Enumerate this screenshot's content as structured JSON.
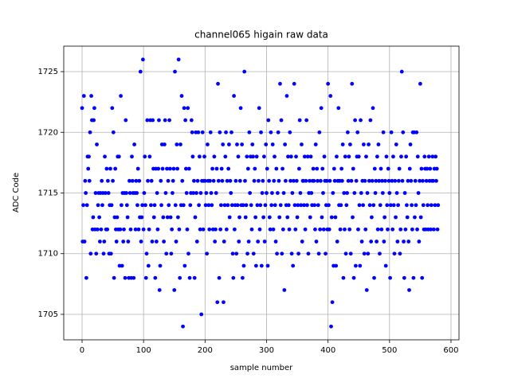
{
  "chart_data": {
    "type": "scatter",
    "title": "channel065 higain raw data",
    "x_label": "sample number",
    "y_label": "ADC Code",
    "color": "#0000ff",
    "grid": true,
    "xlim": [
      -29.8,
      613
    ],
    "ylim": [
      1702.9,
      1727.1
    ],
    "xticks": [
      0,
      100,
      200,
      300,
      400,
      500,
      600
    ],
    "yticks": [
      1705,
      1710,
      1715,
      1720,
      1725
    ],
    "x": [
      0,
      1,
      2,
      3,
      4,
      5,
      6,
      7,
      8,
      9,
      10,
      11,
      12,
      13,
      14,
      15,
      16,
      17,
      18,
      19,
      20,
      21,
      22,
      23,
      24,
      25,
      26,
      27,
      28,
      29,
      30,
      31,
      32,
      33,
      34,
      35,
      36,
      37,
      38,
      39,
      40,
      41,
      42,
      43,
      44,
      45,
      46,
      47,
      48,
      49,
      50,
      51,
      52,
      53,
      54,
      55,
      56,
      57,
      58,
      59,
      60,
      61,
      62,
      63,
      64,
      65,
      66,
      67,
      68,
      69,
      70,
      71,
      72,
      73,
      74,
      75,
      76,
      77,
      78,
      79,
      80,
      81,
      82,
      83,
      84,
      85,
      86,
      87,
      88,
      89,
      90,
      91,
      92,
      93,
      94,
      95,
      96,
      97,
      98,
      99,
      100,
      101,
      102,
      103,
      104,
      105,
      106,
      107,
      108,
      109,
      110,
      111,
      112,
      113,
      114,
      115,
      116,
      117,
      118,
      119,
      120,
      121,
      122,
      123,
      124,
      125,
      126,
      127,
      128,
      129,
      130,
      131,
      132,
      133,
      134,
      135,
      136,
      137,
      138,
      139,
      140,
      141,
      142,
      143,
      144,
      145,
      146,
      147,
      148,
      149,
      150,
      151,
      152,
      153,
      154,
      155,
      156,
      157,
      158,
      159,
      160,
      161,
      162,
      163,
      164,
      165,
      166,
      167,
      168,
      169,
      170,
      171,
      172,
      173,
      174,
      175,
      176,
      177,
      178,
      179,
      180,
      181,
      182,
      183,
      184,
      185,
      186,
      187,
      188,
      189,
      190,
      191,
      192,
      193,
      194,
      195,
      196,
      197,
      198,
      199,
      200,
      201,
      202,
      203,
      204,
      205,
      206,
      207,
      208,
      209,
      210,
      211,
      212,
      213,
      214,
      215,
      216,
      217,
      218,
      219,
      220,
      221,
      222,
      223,
      224,
      225,
      226,
      227,
      228,
      229,
      230,
      231,
      232,
      233,
      234,
      235,
      236,
      237,
      238,
      239,
      240,
      241,
      242,
      243,
      244,
      245,
      246,
      247,
      248,
      249,
      250,
      251,
      252,
      253,
      254,
      255,
      256,
      257,
      258,
      259,
      260,
      261,
      262,
      263,
      264,
      265,
      266,
      267,
      268,
      269,
      270,
      271,
      272,
      273,
      274,
      275,
      276,
      277,
      278,
      279,
      280,
      281,
      282,
      283,
      284,
      285,
      286,
      287,
      288,
      289,
      290,
      291,
      292,
      293,
      294,
      295,
      296,
      297,
      298,
      299,
      300,
      301,
      302,
      303,
      304,
      305,
      306,
      307,
      308,
      309,
      310,
      311,
      312,
      313,
      314,
      315,
      316,
      317,
      318,
      319,
      320,
      321,
      322,
      323,
      324,
      325,
      326,
      327,
      328,
      329,
      330,
      331,
      332,
      333,
      334,
      335,
      336,
      337,
      338,
      339,
      340,
      341,
      342,
      343,
      344,
      345,
      346,
      347,
      348,
      349,
      350,
      351,
      352,
      353,
      354,
      355,
      356,
      357,
      358,
      359,
      360,
      361,
      362,
      363,
      364,
      365,
      366,
      367,
      368,
      369,
      370,
      371,
      372,
      373,
      374,
      375,
      376,
      377,
      378,
      379,
      380,
      381,
      382,
      383,
      384,
      385,
      386,
      387,
      388,
      389,
      390,
      391,
      392,
      393,
      394,
      395,
      396,
      397,
      398,
      399,
      400,
      401,
      402,
      403,
      404,
      405,
      406,
      407,
      408,
      409,
      410,
      411,
      412,
      413,
      414,
      415,
      416,
      417,
      418,
      419,
      420,
      421,
      422,
      423,
      424,
      425,
      426,
      427,
      428,
      429,
      430,
      431,
      432,
      433,
      434,
      435,
      436,
      437,
      438,
      439,
      440,
      441,
      442,
      443,
      444,
      445,
      446,
      447,
      448,
      449,
      450,
      451,
      452,
      453,
      454,
      455,
      456,
      457,
      458,
      459,
      460,
      461,
      462,
      463,
      464,
      465,
      466,
      467,
      468,
      469,
      470,
      471,
      472,
      473,
      474,
      475,
      476,
      477,
      478,
      479,
      480,
      481,
      482,
      483,
      484,
      485,
      486,
      487,
      488,
      489,
      490,
      491,
      492,
      493,
      494,
      495,
      496,
      497,
      498,
      499,
      500,
      501,
      502,
      503,
      504,
      505,
      506,
      507,
      508,
      509,
      510,
      511,
      512,
      513,
      514,
      515,
      516,
      517,
      518,
      519,
      520,
      521,
      522,
      523,
      524,
      525,
      526,
      527,
      528,
      529,
      530,
      531,
      532,
      533,
      534,
      535,
      536,
      537,
      538,
      539,
      540,
      541,
      542,
      543,
      544,
      545,
      546,
      547,
      548,
      549,
      550,
      551,
      552,
      553,
      554,
      555,
      556,
      557,
      558,
      559,
      560,
      561,
      562,
      563,
      564,
      565,
      566,
      567,
      568,
      569,
      570,
      571,
      572,
      573,
      574,
      575,
      576,
      577,
      578,
      579
    ],
    "values": [
      1722,
      1711,
      1714,
      1723,
      1711,
      1716,
      1715,
      1708,
      1714,
      1718,
      1717,
      1718,
      1716,
      1720,
      1710,
      1723,
      1721,
      1712,
      1713,
      1721,
      1722,
      1712,
      1715,
      1710,
      1719,
      1712,
      1714,
      1715,
      1713,
      1711,
      1715,
      1712,
      1716,
      1714,
      1715,
      1710,
      1711,
      1718,
      1715,
      1712,
      1717,
      1712,
      1716,
      1715,
      1710,
      1714,
      1717,
      1710,
      1714,
      1722,
      1716,
      1720,
      1708,
      1713,
      1717,
      1712,
      1711,
      1713,
      1718,
      1712,
      1718,
      1709,
      1712,
      1723,
      1714,
      1709,
      1715,
      1711,
      1712,
      1715,
      1708,
      1721,
      1715,
      1714,
      1713,
      1711,
      1708,
      1716,
      1715,
      1712,
      1708,
      1718,
      1716,
      1715,
      1708,
      1719,
      1715,
      1712,
      1716,
      1715,
      1714,
      1717,
      1712,
      1716,
      1713,
      1725,
      1711,
      1713,
      1714,
      1726,
      1712,
      1715,
      1718,
      1714,
      1708,
      1710,
      1721,
      1716,
      1709,
      1712,
      1718,
      1721,
      1714,
      1716,
      1711,
      1721,
      1717,
      1713,
      1714,
      1708,
      1717,
      1711,
      1715,
      1712,
      1717,
      1721,
      1707,
      1709,
      1716,
      1714,
      1719,
      1717,
      1713,
      1711,
      1719,
      1721,
      1715,
      1710,
      1717,
      1713,
      1716,
      1714,
      1721,
      1717,
      1713,
      1710,
      1712,
      1715,
      1716,
      1717,
      1707,
      1725,
      1714,
      1711,
      1719,
      1717,
      1713,
      1726,
      1712,
      1708,
      1719,
      1714,
      1723,
      1716,
      1704,
      1714,
      1722,
      1709,
      1721,
      1717,
      1715,
      1712,
      1722,
      1710,
      1717,
      1708,
      1714,
      1715,
      1721,
      1720,
      1718,
      1715,
      1716,
      1708,
      1713,
      1720,
      1715,
      1711,
      1716,
      1720,
      1714,
      1718,
      1712,
      1715,
      1705,
      1716,
      1720,
      1712,
      1716,
      1718,
      1716,
      1714,
      1715,
      1710,
      1719,
      1716,
      1714,
      1712,
      1716,
      1720,
      1715,
      1714,
      1717,
      1712,
      1716,
      1718,
      1711,
      1712,
      1715,
      1717,
      1706,
      1724,
      1716,
      1708,
      1720,
      1712,
      1714,
      1717,
      1716,
      1719,
      1706,
      1711,
      1714,
      1718,
      1720,
      1712,
      1716,
      1714,
      1717,
      1719,
      1713,
      1716,
      1715,
      1720,
      1714,
      1710,
      1708,
      1723,
      1712,
      1714,
      1716,
      1710,
      1719,
      1714,
      1718,
      1711,
      1713,
      1716,
      1722,
      1714,
      1719,
      1708,
      1714,
      1709,
      1725,
      1716,
      1713,
      1714,
      1718,
      1710,
      1717,
      1711,
      1720,
      1715,
      1718,
      1714,
      1712,
      1719,
      1718,
      1710,
      1716,
      1717,
      1713,
      1709,
      1718,
      1714,
      1711,
      1716,
      1722,
      1712,
      1714,
      1720,
      1709,
      1715,
      1716,
      1713,
      1718,
      1711,
      1714,
      1719,
      1715,
      1717,
      1709,
      1721,
      1716,
      1713,
      1712,
      1720,
      1714,
      1715,
      1719,
      1712,
      1716,
      1718,
      1714,
      1711,
      1717,
      1710,
      1715,
      1720,
      1716,
      1713,
      1724,
      1714,
      1721,
      1710,
      1717,
      1712,
      1715,
      1707,
      1719,
      1716,
      1714,
      1723,
      1713,
      1718,
      1714,
      1712,
      1720,
      1716,
      1718,
      1710,
      1715,
      1709,
      1716,
      1724,
      1714,
      1712,
      1718,
      1716,
      1713,
      1714,
      1710,
      1717,
      1721,
      1715,
      1714,
      1719,
      1711,
      1716,
      1716,
      1714,
      1718,
      1712,
      1716,
      1721,
      1714,
      1718,
      1710,
      1715,
      1716,
      1713,
      1718,
      1715,
      1714,
      1716,
      1717,
      1716,
      1714,
      1712,
      1719,
      1711,
      1717,
      1716,
      1714,
      1710,
      1720,
      1712,
      1716,
      1722,
      1713,
      1717,
      1715,
      1712,
      1718,
      1716,
      1710,
      1714,
      1716,
      1712,
      1724,
      1714,
      1712,
      1716,
      1723,
      1704,
      1713,
      1706,
      1715,
      1709,
      1717,
      1716,
      1713,
      1709,
      1718,
      1711,
      1716,
      1722,
      1714,
      1716,
      1712,
      1714,
      1717,
      1716,
      1719,
      1708,
      1715,
      1712,
      1718,
      1710,
      1714,
      1715,
      1720,
      1716,
      1718,
      1712,
      1719,
      1710,
      1716,
      1724,
      1713,
      1717,
      1708,
      1715,
      1721,
      1709,
      1716,
      1718,
      1720,
      1712,
      1718,
      1714,
      1709,
      1721,
      1715,
      1711,
      1716,
      1714,
      1719,
      1710,
      1716,
      1712,
      1718,
      1707,
      1715,
      1710,
      1719,
      1716,
      1714,
      1721,
      1711,
      1713,
      1716,
      1722,
      1714,
      1708,
      1717,
      1715,
      1716,
      1711,
      1718,
      1712,
      1719,
      1716,
      1710,
      1714,
      1717,
      1712,
      1716,
      1715,
      1720,
      1711,
      1713,
      1716,
      1709,
      1718,
      1714,
      1712,
      1717,
      1716,
      1715,
      1708,
      1714,
      1720,
      1716,
      1712,
      1718,
      1714,
      1710,
      1716,
      1713,
      1719,
      1715,
      1711,
      1714,
      1716,
      1717,
      1710,
      1712,
      1718,
      1725,
      1716,
      1720,
      1711,
      1708,
      1715,
      1712,
      1718,
      1714,
      1713,
      1716,
      1711,
      1707,
      1717,
      1719,
      1716,
      1714,
      1712,
      1720,
      1708,
      1720,
      1713,
      1716,
      1714,
      1720,
      1712,
      1718,
      1715,
      1711,
      1716,
      1724,
      1713,
      1717,
      1708,
      1716,
      1714,
      1712,
      1718,
      1717,
      1712,
      1716,
      1717,
      1714,
      1712,
      1718,
      1716,
      1717,
      1712,
      1714,
      1716,
      1718,
      1716,
      1712,
      1717,
      1714,
      1718,
      1716,
      1717,
      1712,
      1714
    ]
  }
}
